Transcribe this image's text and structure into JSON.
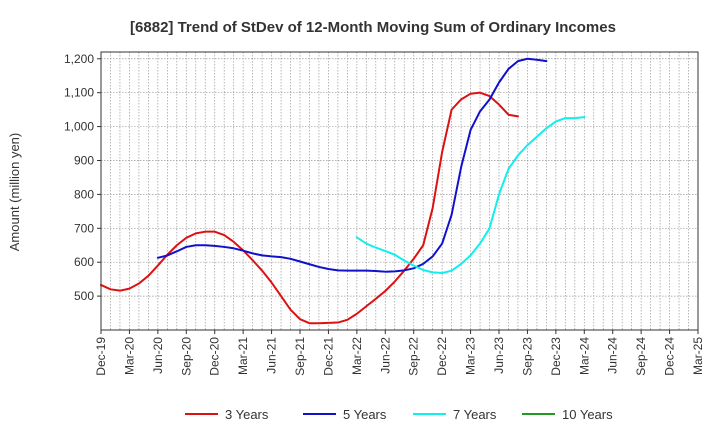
{
  "chart_data": {
    "type": "line",
    "title": "[6882]  Trend of StDev of 12-Month Moving Sum of Ordinary Incomes",
    "xlabel": "",
    "ylabel": "Amount (million yen)",
    "ylim": [
      400,
      1220
    ],
    "y_ticks": [
      500,
      600,
      700,
      800,
      900,
      1000,
      1100,
      1200
    ],
    "y_tick_labels": [
      "500",
      "600",
      "700",
      "800",
      "900",
      "1,000",
      "1,100",
      "1,200"
    ],
    "x_tick_labels": [
      "Dec-19",
      "Mar-20",
      "Jun-20",
      "Sep-20",
      "Dec-20",
      "Mar-21",
      "Jun-21",
      "Sep-21",
      "Dec-21",
      "Mar-22",
      "Jun-22",
      "Sep-22",
      "Dec-22",
      "Mar-23",
      "Jun-23",
      "Sep-23",
      "Dec-23",
      "Mar-24",
      "Jun-24",
      "Sep-24",
      "Dec-24",
      "Mar-25"
    ],
    "grid": true,
    "legend_position": "bottom",
    "series": [
      {
        "name": "3 Years",
        "color": "#dd1111",
        "start_index": 0,
        "values": [
          533,
          520,
          516,
          522,
          537,
          560,
          590,
          622,
          650,
          672,
          685,
          690,
          690,
          680,
          660,
          635,
          606,
          575,
          540,
          500,
          460,
          432,
          420,
          420,
          421,
          422,
          430,
          448,
          470,
          492,
          515,
          543,
          575,
          610,
          650,
          760,
          925,
          1050,
          1080,
          1097,
          1100,
          1090,
          1065,
          1035,
          1030
        ]
      },
      {
        "name": "5 Years",
        "color": "#1111cc",
        "start_index": 6,
        "values": [
          613,
          620,
          632,
          645,
          650,
          650,
          648,
          645,
          641,
          634,
          626,
          620,
          617,
          615,
          610,
          602,
          594,
          586,
          580,
          576,
          575,
          575,
          575,
          574,
          572,
          573,
          576,
          582,
          595,
          617,
          655,
          740,
          880,
          990,
          1045,
          1080,
          1130,
          1170,
          1193,
          1200,
          1197,
          1193
        ]
      },
      {
        "name": "7 Years",
        "color": "#11eeee",
        "start_index": 27,
        "values": [
          673,
          655,
          643,
          633,
          622,
          605,
          590,
          577,
          570,
          568,
          575,
          595,
          620,
          655,
          700,
          800,
          875,
          915,
          945,
          970,
          995,
          1015,
          1025,
          1025,
          1028
        ]
      },
      {
        "name": "10 Years",
        "color": "#229922",
        "start_index": 0,
        "values": []
      }
    ]
  }
}
